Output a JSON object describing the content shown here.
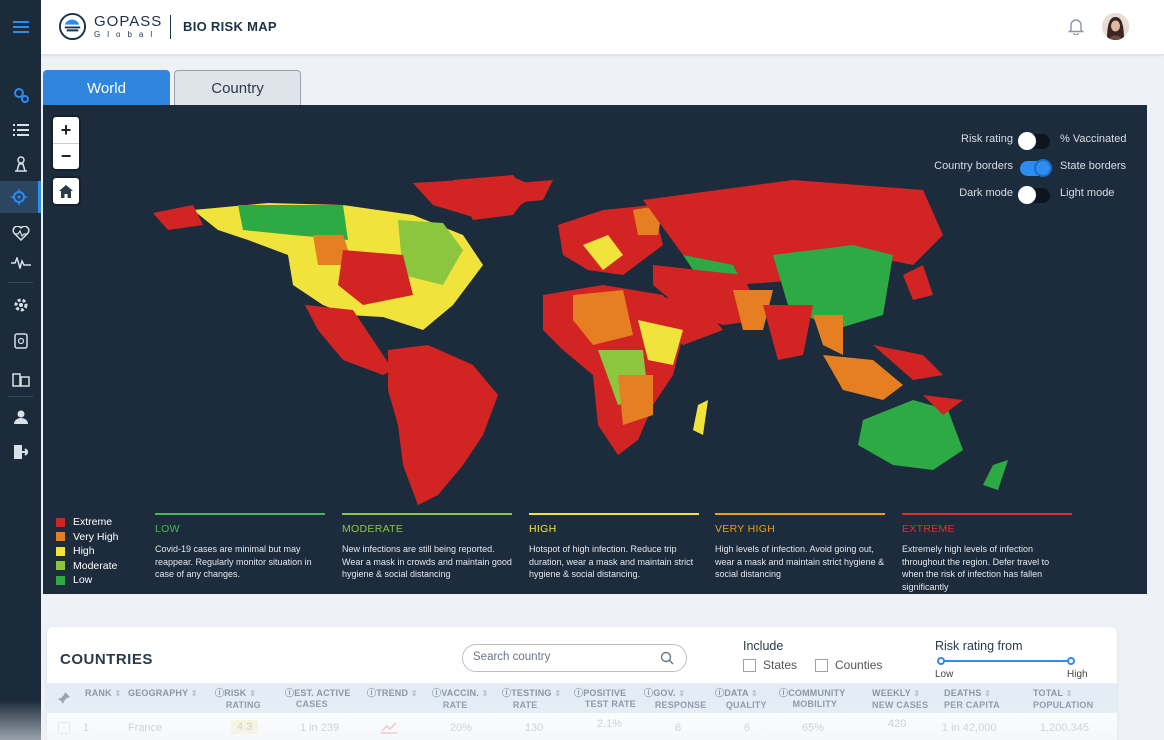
{
  "header": {
    "brand": "GOPASS",
    "brand_sub": "Global",
    "title": "BIO RISK MAP"
  },
  "tabs": [
    {
      "label": "World",
      "active": true
    },
    {
      "label": "Country",
      "active": false
    }
  ],
  "map": {
    "zoom_in": "+",
    "zoom_out": "−",
    "toggles": [
      {
        "left": "Risk rating",
        "right": "% Vaccinated",
        "on": false
      },
      {
        "left": "Country borders",
        "right": "State borders",
        "on": true
      },
      {
        "left": "Dark mode",
        "right": "Light mode",
        "on": false
      }
    ],
    "legend": [
      {
        "label": "Extreme",
        "color": "#d32424"
      },
      {
        "label": "Very High",
        "color": "#e67e22"
      },
      {
        "label": "High",
        "color": "#f0e33c"
      },
      {
        "label": "Moderate",
        "color": "#8cc63f"
      },
      {
        "label": "Low",
        "color": "#2eaa45"
      }
    ],
    "risk_levels": [
      {
        "title": "LOW",
        "color": "#3ebc4f",
        "desc": "Covid-19 cases are minimal but may reappear. Regularly monitor situation in case of any changes."
      },
      {
        "title": "MODERATE",
        "color": "#8cc63f",
        "desc": "New infections are still being reported. Wear a mask in crowds and maintain good hygiene & social distancing"
      },
      {
        "title": "HIGH",
        "color": "#f0e33c",
        "desc": "Hotspot of high infection. Reduce trip duration, wear a mask and maintain strict hygiene & social distancing."
      },
      {
        "title": "VERY HIGH",
        "color": "#f39c12",
        "desc": "High levels of infection. Avoid going out, wear a mask and maintain strict hygiene & social distancing"
      },
      {
        "title": "EXTREME",
        "color": "#e0302e",
        "desc": "Extremely high levels of infection throughout the region. Defer travel to when the risk of infection has fallen significantly"
      }
    ]
  },
  "countries": {
    "title": "COUNTRIES",
    "search_placeholder": "Search country",
    "include_label": "Include",
    "include_options": [
      "States",
      "Counties"
    ],
    "risk_from_label": "Risk rating from",
    "slider_low": "Low",
    "slider_high": "High",
    "columns": [
      {
        "l1": "RANK",
        "l2": ""
      },
      {
        "l1": "GEOGRAPHY",
        "l2": ""
      },
      {
        "l1": "RISK",
        "l2": "RATING"
      },
      {
        "l1": "EST. ACTIVE",
        "l2": "CASES"
      },
      {
        "l1": "TREND",
        "l2": ""
      },
      {
        "l1": "VACCIN.",
        "l2": "RATE"
      },
      {
        "l1": "TESTING",
        "l2": "RATE"
      },
      {
        "l1": "POSITIVE",
        "l2": "TEST RATE"
      },
      {
        "l1": "GOV.",
        "l2": "RESPONSE"
      },
      {
        "l1": "DATA",
        "l2": "QUALITY"
      },
      {
        "l1": "COMMUNITY",
        "l2": "MOBILITY"
      },
      {
        "l1": "WEEKLY",
        "l2": "NEW CASES"
      },
      {
        "l1": "DEATHS",
        "l2": "PER CAPITA"
      },
      {
        "l1": "TOTAL",
        "l2": "POPULATION"
      }
    ],
    "rows": [
      {
        "rank": "1",
        "geography": "France",
        "risk": "4.3",
        "cases": "1 in 239",
        "vaccin": "20%",
        "testing": "130",
        "positive": "2.1%",
        "gov": "6",
        "quality": "6",
        "mobility": "65%",
        "weekly": "420",
        "deaths": "1 in 42,000",
        "population": "1,200,345"
      }
    ]
  }
}
